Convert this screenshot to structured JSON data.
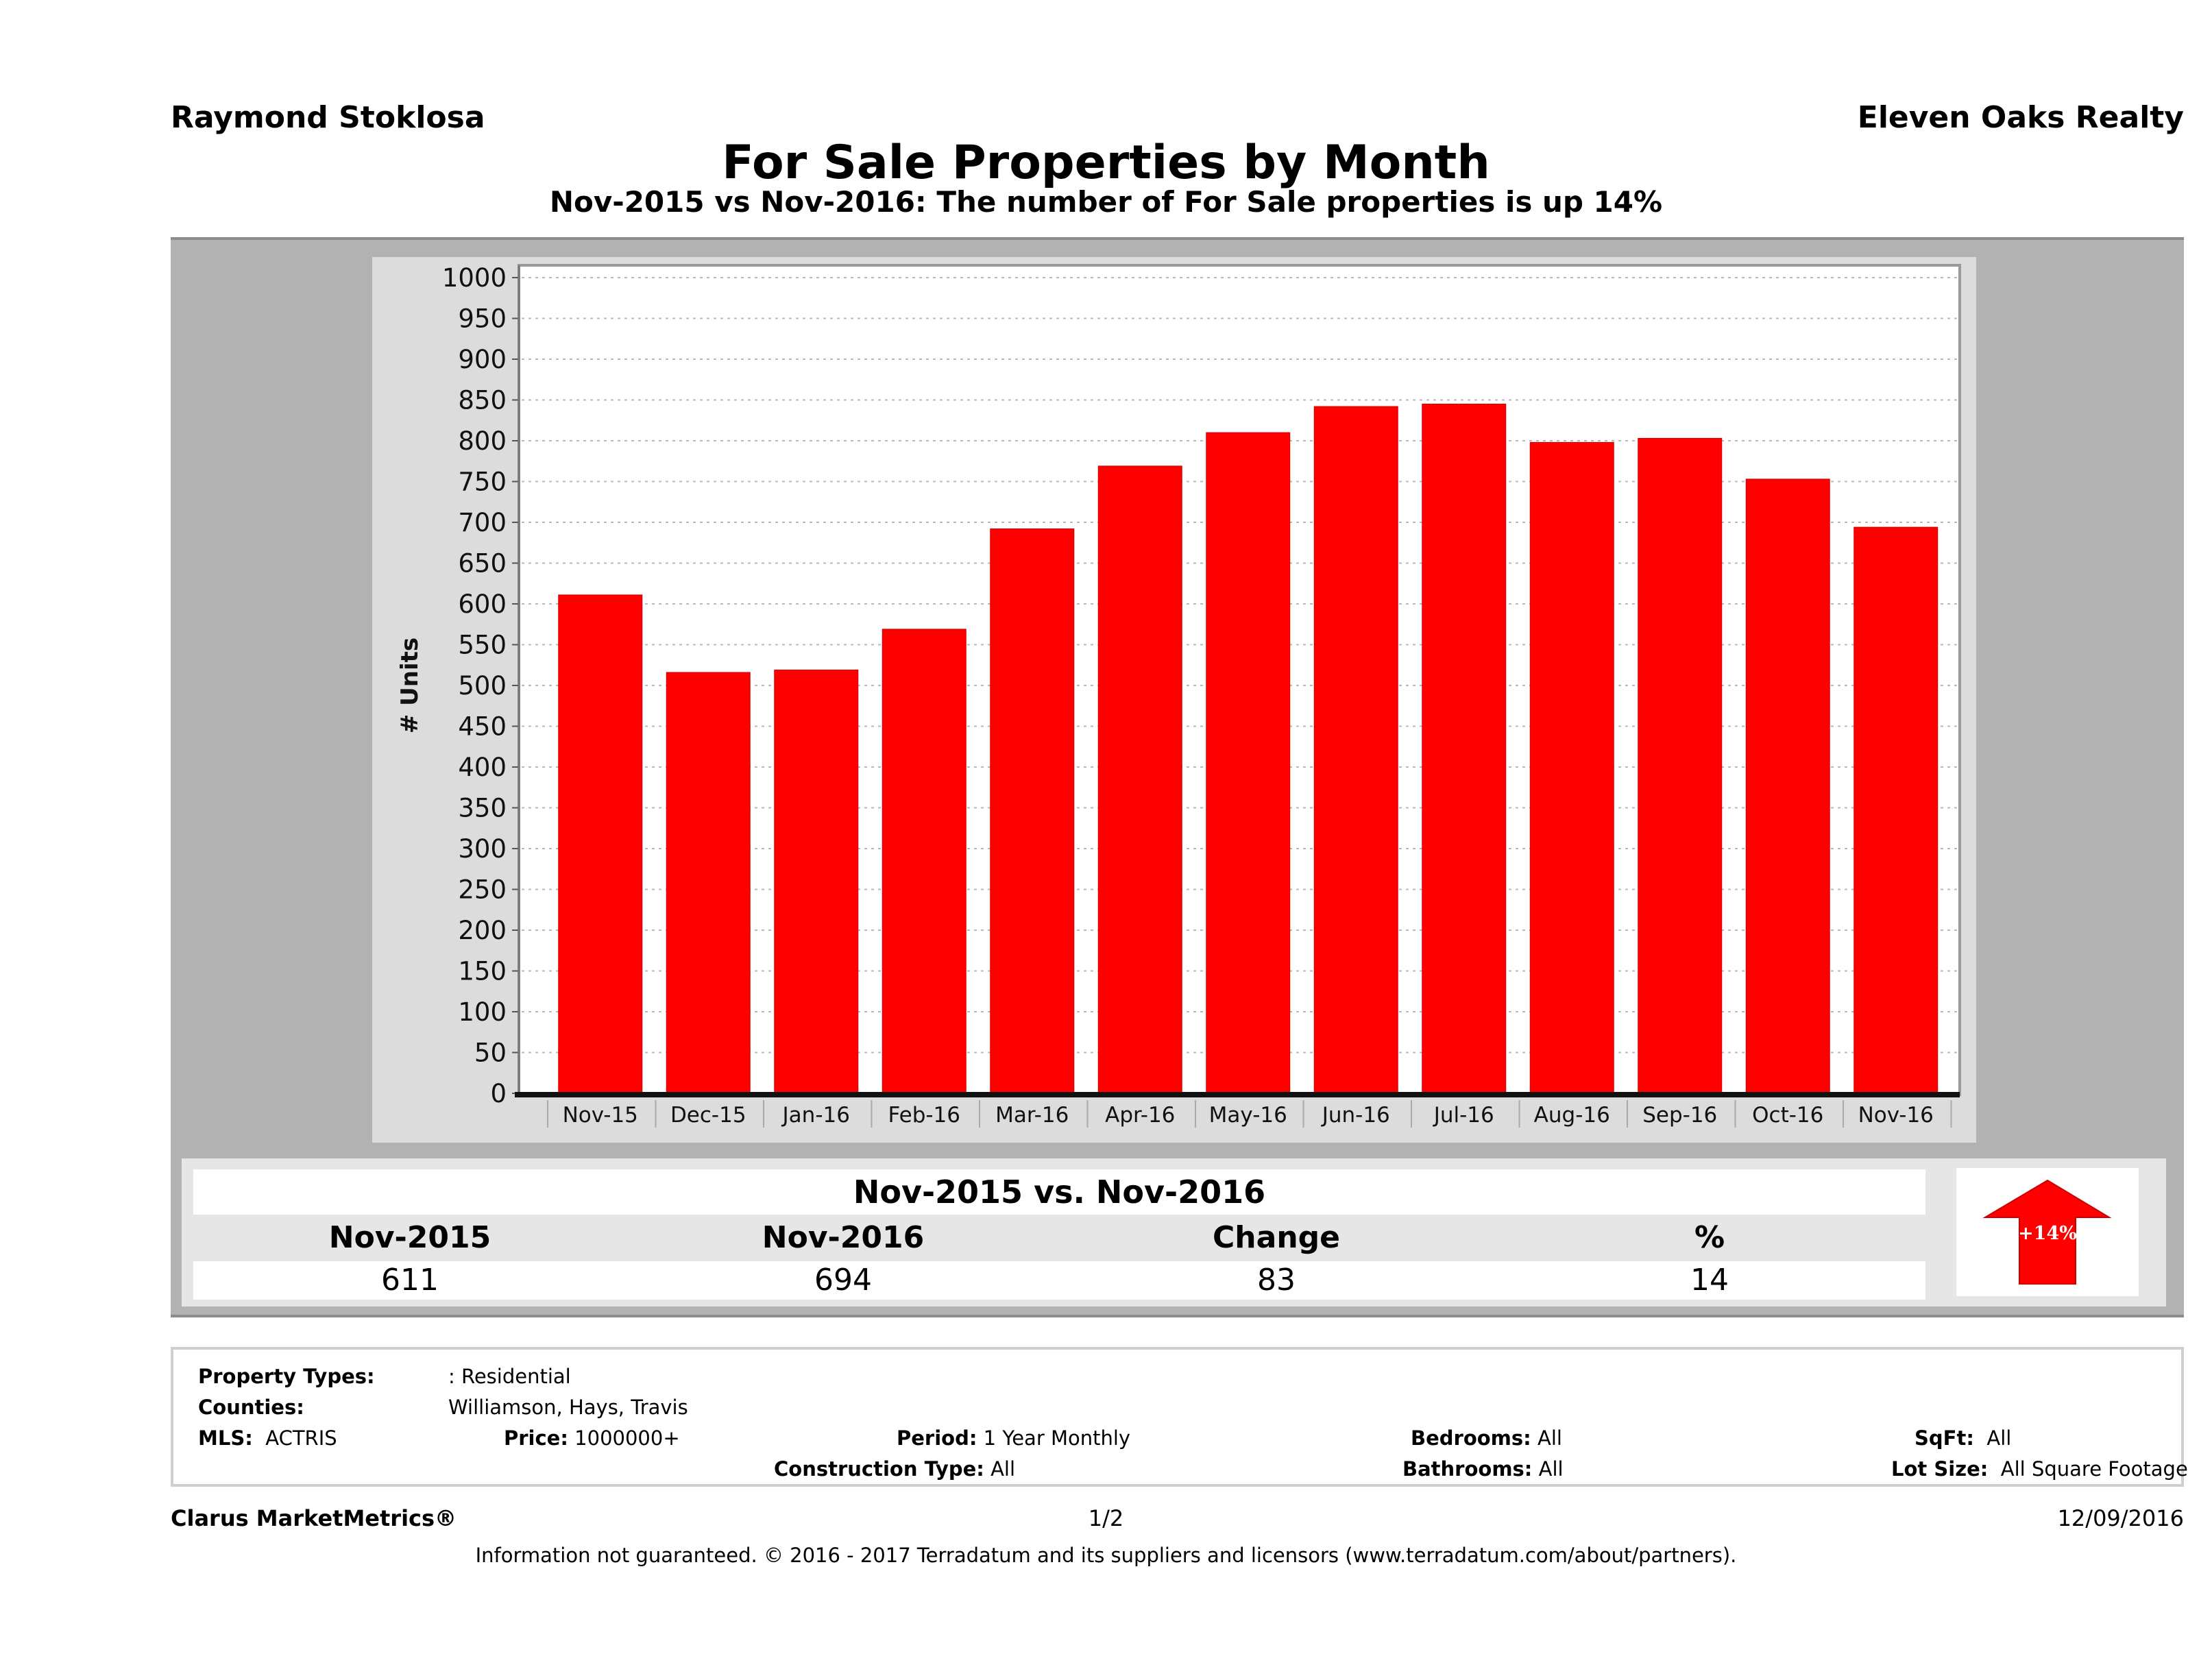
{
  "header": {
    "agent_name": "Raymond Stoklosa",
    "brokerage": "Eleven Oaks Realty",
    "title": "For Sale Properties by Month",
    "subtitle": "Nov-2015 vs Nov-2016: The number of For Sale  properties is up 14%"
  },
  "chart_data": {
    "type": "bar",
    "title": "For Sale Properties by Month",
    "xlabel": "",
    "ylabel": "# Units",
    "categories": [
      "Nov-15",
      "Dec-15",
      "Jan-16",
      "Feb-16",
      "Mar-16",
      "Apr-16",
      "May-16",
      "Jun-16",
      "Jul-16",
      "Aug-16",
      "Sep-16",
      "Oct-16",
      "Nov-16"
    ],
    "values": [
      611,
      516,
      519,
      569,
      692,
      769,
      810,
      842,
      845,
      798,
      803,
      753,
      694
    ],
    "ylim": [
      0,
      1000
    ],
    "yticks": [
      0,
      50,
      100,
      150,
      200,
      250,
      300,
      350,
      400,
      450,
      500,
      550,
      600,
      650,
      700,
      750,
      800,
      850,
      900,
      950,
      1000
    ],
    "grid": true,
    "bar_color": "#ff0000",
    "legend": "none"
  },
  "summary": {
    "title": "Nov-2015 vs. Nov-2016",
    "headers": [
      "Nov-2015",
      "Nov-2016",
      "Change",
      "%"
    ],
    "values": [
      "611",
      "694",
      "83",
      "14"
    ],
    "badge": {
      "label": "+14%",
      "direction": "up",
      "color": "#ff0000"
    }
  },
  "criteria": {
    "property_types_label": "Property Types:",
    "property_types_value": ": Residential",
    "counties_label": "Counties:",
    "counties_value": "Williamson, Hays, Travis",
    "mls_label": "MLS:",
    "mls_value": "ACTRIS",
    "price_label": "Price:",
    "price_value": "1000000+",
    "period_label": "Period:",
    "period_value": "1 Year Monthly",
    "construction_label": "Construction Type:",
    "construction_value": "All",
    "bedrooms_label": "Bedrooms:",
    "bedrooms_value": "All",
    "bathrooms_label": "Bathrooms:",
    "bathrooms_value": "All",
    "sqft_label": "SqFt:",
    "sqft_value": "All",
    "lotsize_label": "Lot Size:",
    "lotsize_value": "All Square Footage"
  },
  "footer": {
    "brand": "Clarus MarketMetrics®",
    "page": "1/2",
    "date": "12/09/2016",
    "disclaimer": "Information not guaranteed. © 2016 - 2017 Terradatum and its suppliers and licensors (www.terradatum.com/about/partners)."
  }
}
